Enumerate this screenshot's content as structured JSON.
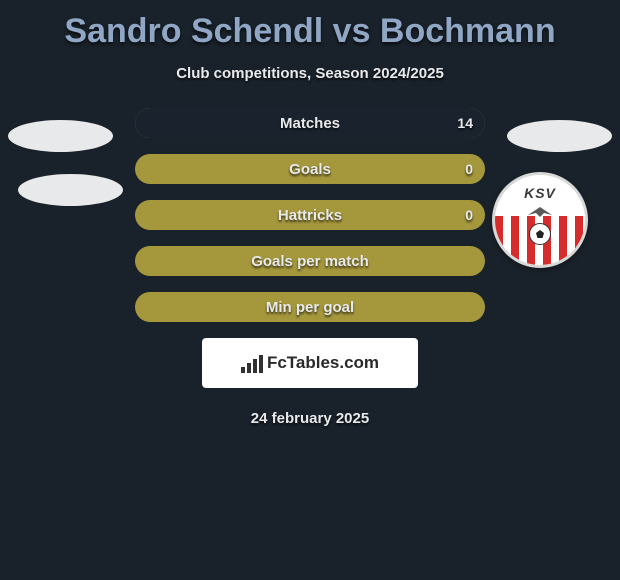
{
  "title": "Sandro Schendl vs Bochmann",
  "subtitle": "Club competitions, Season 2024/2025",
  "date": "24 february 2025",
  "fctables_label": "FcTables.com",
  "colors": {
    "background": "#19212a",
    "title": "#8fa6c4",
    "text": "#e8e9eb",
    "bar_fill": "#a5973c",
    "bar_empty": "#1a232d"
  },
  "badge": {
    "initials": "KSV",
    "stripe_colors": [
      "#d82b2b",
      "#ffffff"
    ]
  },
  "stats": [
    {
      "label": "Matches",
      "left_pct": 0,
      "right_pct": 100,
      "right_value": "14"
    },
    {
      "label": "Goals",
      "left_pct": 100,
      "right_pct": 0,
      "right_value": "0"
    },
    {
      "label": "Hattricks",
      "left_pct": 100,
      "right_pct": 0,
      "right_value": "0"
    },
    {
      "label": "Goals per match",
      "left_pct": 100,
      "right_pct": 0,
      "right_value": ""
    },
    {
      "label": "Min per goal",
      "left_pct": 100,
      "right_pct": 0,
      "right_value": ""
    }
  ]
}
